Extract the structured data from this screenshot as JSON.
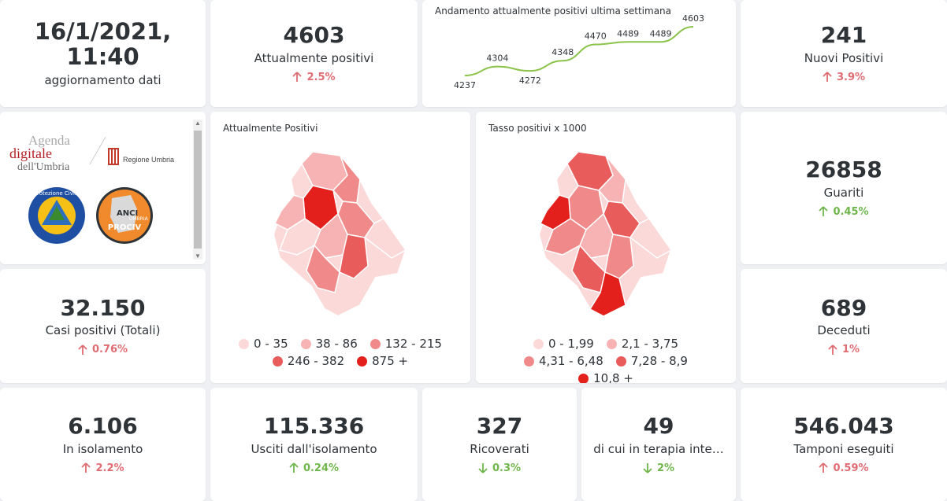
{
  "update": {
    "datetime": "16/1/2021, 11:40",
    "label": "aggiornamento dati"
  },
  "kpi": {
    "attualmente_positivi": {
      "value": "4603",
      "label": "Attualmente positivi",
      "delta": "2.5%",
      "direction": "up",
      "color": "red"
    },
    "nuovi_positivi": {
      "value": "241",
      "label": "Nuovi Positivi",
      "delta": "3.9%",
      "direction": "up",
      "color": "red"
    },
    "guariti": {
      "value": "26858",
      "label": "Guariti",
      "delta": "0.45%",
      "direction": "up",
      "color": "green"
    },
    "casi_totali": {
      "value": "32.150",
      "label": "Casi positivi (Totali)",
      "delta": "0.76%",
      "direction": "up",
      "color": "red"
    },
    "deceduti": {
      "value": "689",
      "label": "Deceduti",
      "delta": "1%",
      "direction": "up",
      "color": "red"
    },
    "isolamento": {
      "value": "6.106",
      "label": "In isolamento",
      "delta": "2.2%",
      "direction": "up",
      "color": "red"
    },
    "usciti": {
      "value": "115.336",
      "label": "Usciti dall'isolamento",
      "delta": "0.24%",
      "direction": "up",
      "color": "green"
    },
    "ricoverati": {
      "value": "327",
      "label": "Ricoverati",
      "delta": "0.3%",
      "direction": "down",
      "color": "green"
    },
    "terapia": {
      "value": "49",
      "label": "di cui in terapia inte…",
      "delta": "2%",
      "direction": "down",
      "color": "green"
    },
    "tamponi": {
      "value": "546.043",
      "label": "Tamponi eseguiti",
      "delta": "0.59%",
      "direction": "up",
      "color": "red"
    }
  },
  "chart_data": {
    "type": "line",
    "title": "Andamento attualmente positivi ultima settimana",
    "x": [
      1,
      2,
      3,
      4,
      5,
      6,
      7,
      8
    ],
    "values": [
      4237,
      4304,
      4272,
      4348,
      4470,
      4489,
      4489,
      4603
    ],
    "ylim": [
      4237,
      4603
    ],
    "grid": false,
    "line_color": "#8bc34a"
  },
  "logos": {
    "agenda_line1": "Agenda",
    "agenda_line2": "digitale",
    "agenda_line3": "dell'Umbria",
    "regione": "Regione Umbria",
    "protezione_civile": "Protezione Civile",
    "anci_line1": "ANCI",
    "anci_line2": "UMBRIA",
    "anci_line3": "PROCIV"
  },
  "maps": {
    "positivi": {
      "title": "Attualmente Positivi",
      "legend": [
        {
          "label": "0 - 35",
          "color": "#fbd9d9"
        },
        {
          "label": "38 - 86",
          "color": "#f7b3b3"
        },
        {
          "label": "132 - 215",
          "color": "#f08a8a"
        },
        {
          "label": "246 - 382",
          "color": "#e95c5c"
        },
        {
          "label": "875 +",
          "color": "#e3201c"
        }
      ]
    },
    "tasso": {
      "title": "Tasso positivi x 1000",
      "legend": [
        {
          "label": "0 - 1,99",
          "color": "#fbd9d9"
        },
        {
          "label": "2,1 - 3,75",
          "color": "#f7b3b3"
        },
        {
          "label": "4,31 - 6,48",
          "color": "#f08a8a"
        },
        {
          "label": "7,28 - 8,9",
          "color": "#e95c5c"
        },
        {
          "label": "10,8 +",
          "color": "#e3201c"
        }
      ]
    }
  },
  "colors": {
    "up_red": "#e06c73",
    "green": "#6fb64c",
    "text": "#2e3338"
  }
}
